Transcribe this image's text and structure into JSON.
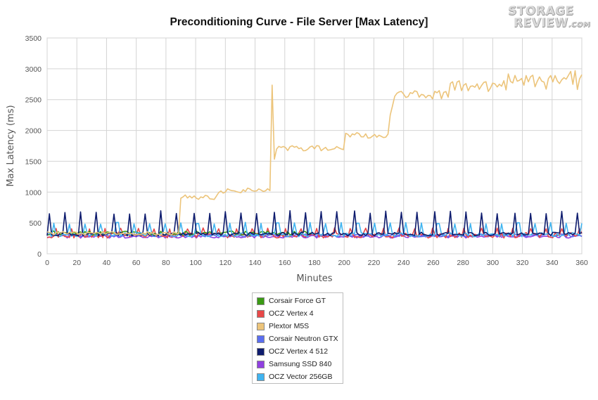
{
  "chart_data": {
    "type": "line",
    "title": "Preconditioning Curve - File Server [Max Latency]",
    "xlabel": "Minutes",
    "ylabel": "Max Latency (ms)",
    "xlim": [
      0,
      360
    ],
    "ylim": [
      0,
      3500
    ],
    "xticks": [
      0,
      20,
      40,
      60,
      80,
      100,
      120,
      140,
      160,
      180,
      200,
      220,
      240,
      260,
      280,
      300,
      320,
      340,
      360
    ],
    "yticks": [
      0,
      500,
      1000,
      1500,
      2000,
      2500,
      3000,
      3500
    ],
    "grid": true,
    "legend_position": "bottom",
    "series": [
      {
        "name": "Corsair Force GT",
        "color": "#3a9a14",
        "base": 330,
        "amp": 35,
        "spike_every": 24,
        "spike_start": 5,
        "spike_height": 40,
        "x_end": 180
      },
      {
        "name": "OCZ Vertex 4",
        "color": "#e84848",
        "base": 300,
        "amp": 45,
        "spike_every": 11,
        "spike_start": 6,
        "spike_height": 120,
        "x_end": 360
      },
      {
        "name": "Plextor M5S",
        "color": "#ecc47a",
        "segments": [
          {
            "x0": 0,
            "x1": 89,
            "level": 330,
            "amp": 30
          },
          {
            "x0": 90,
            "x1": 114,
            "level": 920,
            "amp": 40
          },
          {
            "x0": 115,
            "x1": 151,
            "level": 1020,
            "amp": 45
          },
          {
            "x0": 152,
            "x1": 153,
            "level": 1550,
            "amp": 60
          },
          {
            "x0": 154,
            "x1": 200,
            "level": 1720,
            "amp": 50
          },
          {
            "x0": 201,
            "x1": 230,
            "level": 1920,
            "amp": 45
          },
          {
            "x0": 231,
            "x1": 233,
            "level": 2400,
            "amp": 150
          },
          {
            "x0": 234,
            "x1": 270,
            "level": 2580,
            "amp": 70
          },
          {
            "x0": 271,
            "x1": 310,
            "level": 2720,
            "amp": 90
          },
          {
            "x0": 311,
            "x1": 360,
            "level": 2850,
            "amp": 140
          }
        ]
      },
      {
        "name": "Corsair Neutron GTX",
        "color": "#5a6ef0",
        "base": 300,
        "amp": 25,
        "spike_every": 0,
        "spike_start": 0,
        "spike_height": 0,
        "x_end": 360
      },
      {
        "name": "OCZ Vertex 4 512",
        "color": "#0e1c6e",
        "base": 320,
        "amp": 30,
        "spike_every": 10.8,
        "spike_start": 12,
        "spike_height": 380,
        "x_end": 360
      },
      {
        "name": "Samsung SSD 840",
        "color": "#9040e0",
        "base": 280,
        "amp": 25,
        "spike_every": 0,
        "spike_start": 0,
        "spike_height": 0,
        "x_end": 360
      },
      {
        "name": "OCZ Vector 256GB",
        "color": "#40b4f0",
        "base": 310,
        "amp": 35,
        "spike_every": 10.8,
        "spike_start": 4,
        "spike_height": 200,
        "x_end": 360
      }
    ]
  },
  "branding": {
    "logo_line1": "STORAGE",
    "logo_line2": "REVIEW",
    "logo_suffix": ".COM"
  }
}
